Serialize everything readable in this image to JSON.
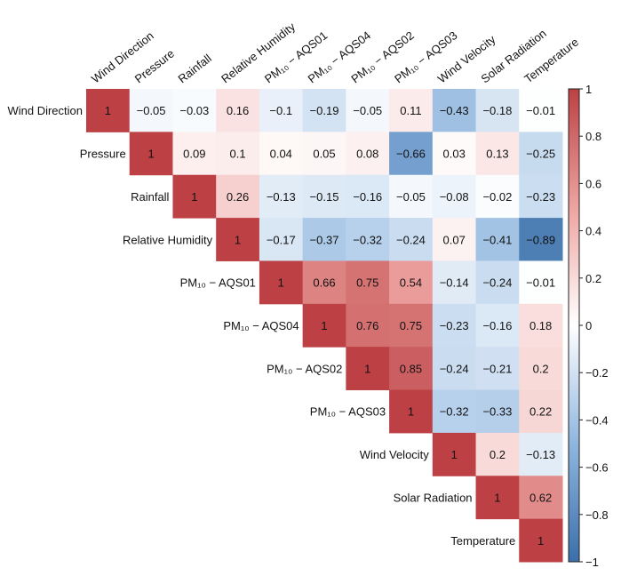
{
  "chart_data": {
    "type": "heatmap",
    "title": "",
    "labels": [
      "Wind Direction",
      "Pressure",
      "Rainfall",
      "Relative Humidity",
      "PM₁₀ − AQS01",
      "PM₁₀ − AQS04",
      "PM₁₀ − AQS02",
      "PM₁₀ − AQS03",
      "Wind Velocity",
      "Solar Radiation",
      "Temperature"
    ],
    "triangle": "upper",
    "matrix": [
      [
        1,
        -0.05,
        -0.03,
        0.16,
        -0.1,
        -0.19,
        -0.05,
        0.11,
        -0.43,
        -0.18,
        -0.01
      ],
      [
        null,
        1,
        0.09,
        0.1,
        0.04,
        0.05,
        0.08,
        -0.66,
        0.03,
        0.13,
        -0.25
      ],
      [
        null,
        null,
        1,
        0.26,
        -0.13,
        -0.15,
        -0.16,
        -0.05,
        -0.08,
        -0.02,
        -0.23
      ],
      [
        null,
        null,
        null,
        1,
        -0.17,
        -0.37,
        -0.32,
        -0.24,
        0.07,
        -0.41,
        -0.89
      ],
      [
        null,
        null,
        null,
        null,
        1,
        0.66,
        0.75,
        0.54,
        -0.14,
        -0.24,
        -0.01
      ],
      [
        null,
        null,
        null,
        null,
        null,
        1,
        0.76,
        0.75,
        -0.23,
        -0.16,
        0.18
      ],
      [
        null,
        null,
        null,
        null,
        null,
        null,
        1,
        0.85,
        -0.24,
        -0.21,
        0.2
      ],
      [
        null,
        null,
        null,
        null,
        null,
        null,
        null,
        1,
        -0.32,
        -0.33,
        0.22
      ],
      [
        null,
        null,
        null,
        null,
        null,
        null,
        null,
        null,
        1,
        0.2,
        -0.13
      ],
      [
        null,
        null,
        null,
        null,
        null,
        null,
        null,
        null,
        null,
        1,
        0.62
      ],
      [
        null,
        null,
        null,
        null,
        null,
        null,
        null,
        null,
        null,
        null,
        1
      ]
    ],
    "colorbar": {
      "range": [
        -1,
        1
      ],
      "ticks": [
        1,
        0.8,
        0.6,
        0.4,
        0.2,
        0,
        -0.2,
        -0.4,
        -0.6,
        -0.8,
        -1
      ],
      "tick_labels": [
        "1",
        "0.8",
        "0.6",
        "0.4",
        "0.2",
        "0",
        "−0.2",
        "−0.4",
        "−0.6",
        "−0.8",
        "−1"
      ]
    },
    "colormap": {
      "negative": "#3b6fa9",
      "mid": "#ffffff",
      "positive": "#bc4044"
    }
  }
}
